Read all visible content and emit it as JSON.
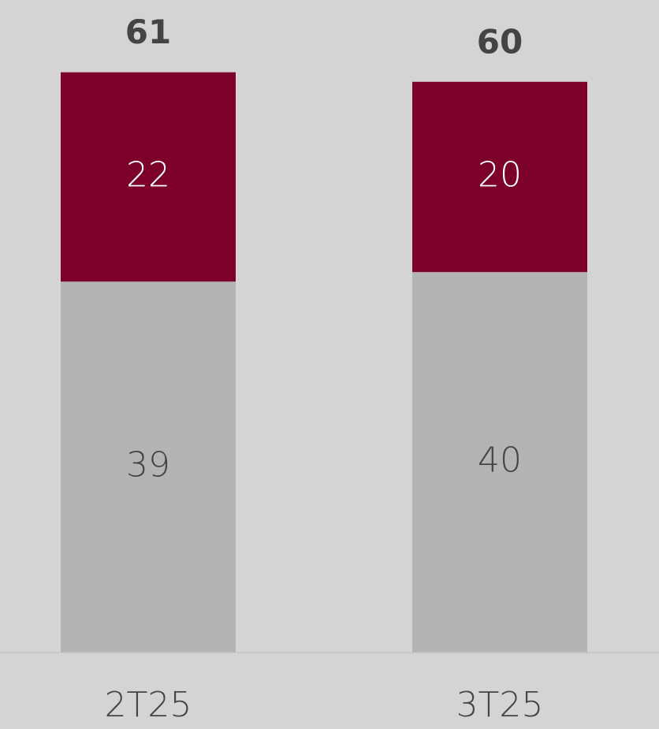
{
  "chart_data": {
    "type": "stacked_bar",
    "categories": [
      "2T25",
      "3T25"
    ],
    "series": [
      {
        "color": "#b4b4b4",
        "label_color": "#444444",
        "values": [
          39,
          40
        ]
      },
      {
        "color": "#7b002c",
        "label_color": "#ffffff",
        "values": [
          22,
          20
        ]
      }
    ],
    "totals": [
      61,
      60
    ],
    "background": "#d4d4d4"
  }
}
